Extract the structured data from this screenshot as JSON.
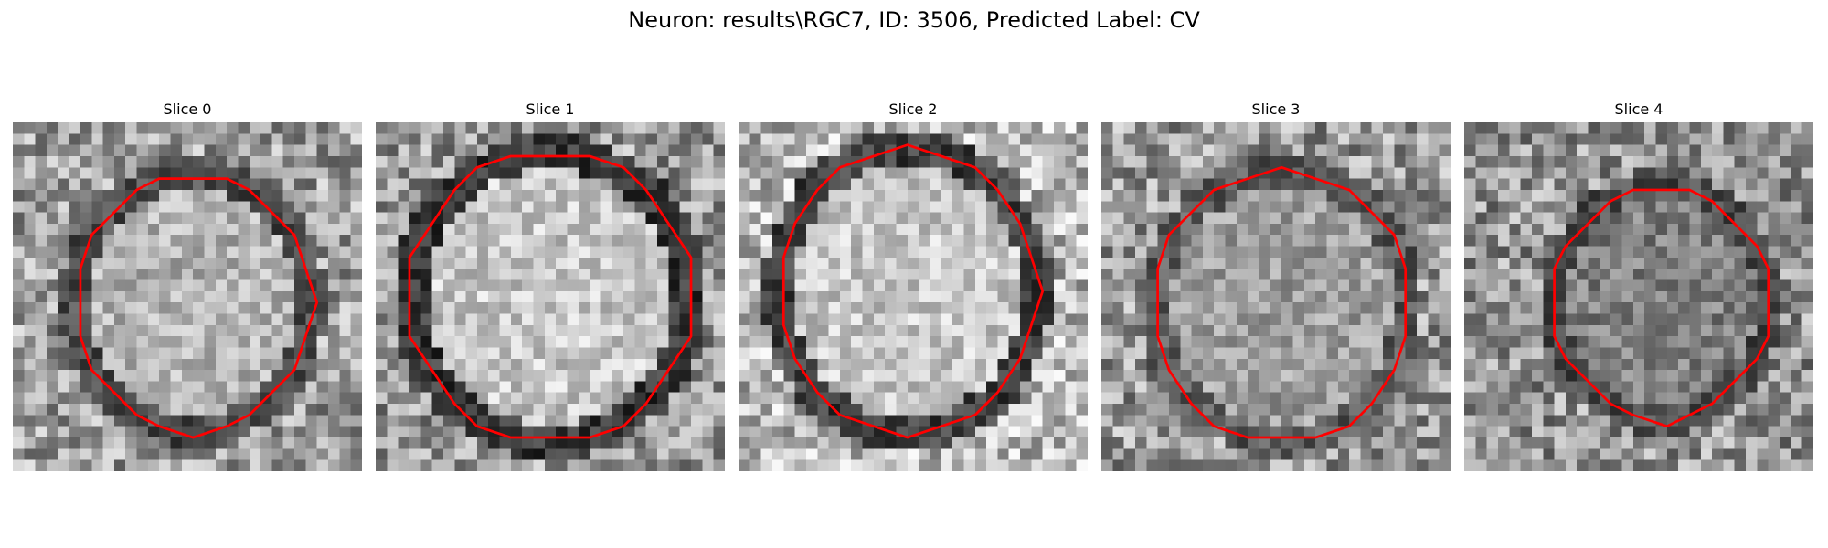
{
  "figure": {
    "title": "Neuron: results\\RGC7, ID: 3506, Predicted Label: CV"
  },
  "slices": [
    {
      "title": "Slice 0",
      "seed": 11,
      "disk_brightness": 0.7,
      "ring_darkness": 0.3,
      "bg_brightness": 0.62
    },
    {
      "title": "Slice 1",
      "seed": 23,
      "disk_brightness": 0.78,
      "ring_darkness": 0.22,
      "bg_brightness": 0.6
    },
    {
      "title": "Slice 2",
      "seed": 37,
      "disk_brightness": 0.78,
      "ring_darkness": 0.25,
      "bg_brightness": 0.72
    },
    {
      "title": "Slice 3",
      "seed": 41,
      "disk_brightness": 0.62,
      "ring_darkness": 0.35,
      "bg_brightness": 0.6
    },
    {
      "title": "Slice 4",
      "seed": 53,
      "disk_brightness": 0.5,
      "ring_darkness": 0.3,
      "bg_brightness": 0.58
    }
  ],
  "colors": {
    "contour": "#ff0000",
    "background": "#ffffff"
  }
}
